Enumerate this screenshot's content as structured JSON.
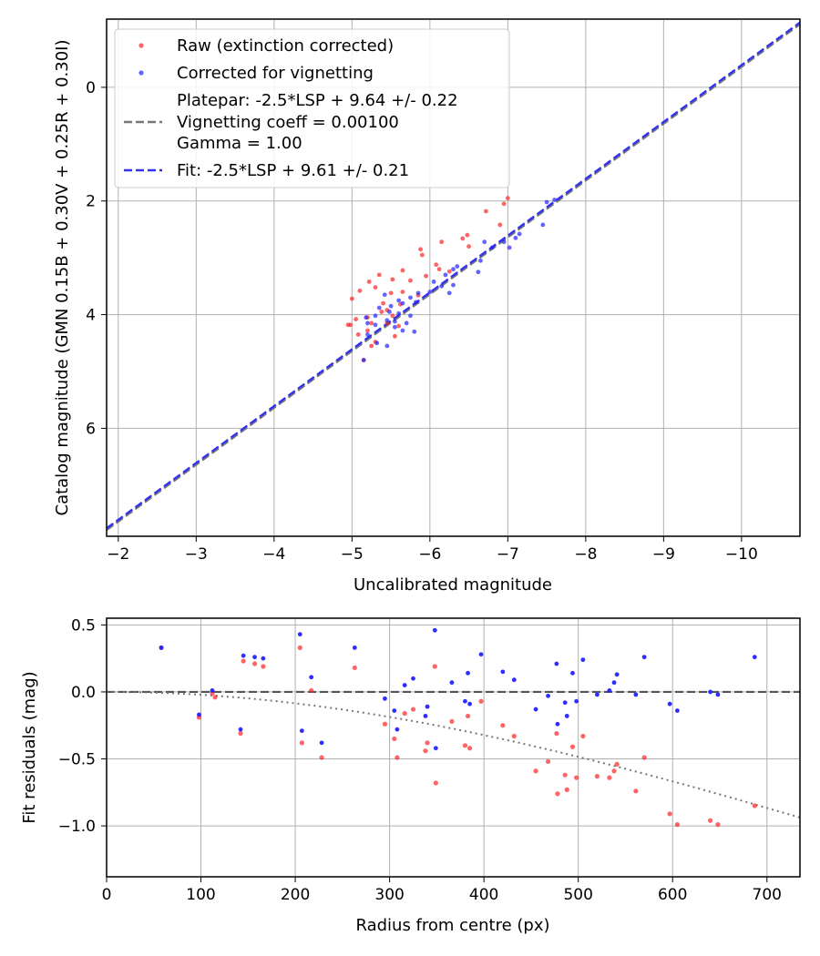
{
  "colors": {
    "raw": "#ff2222",
    "corrected": "#2222ff",
    "platepar": "#777777",
    "fit": "#3333ee",
    "zero_line": "#555555",
    "model_curve": "#777777"
  },
  "chart_data": [
    {
      "type": "scatter",
      "title": "",
      "xlabel": "Uncalibrated magnitude",
      "ylabel": "Catalog magnitude (GMN 0.15B + 0.30V + 0.25R + 0.30I)",
      "xlim": [
        -1.85,
        -10.75
      ],
      "ylim": [
        7.9,
        -1.2
      ],
      "xticks": [
        -2,
        -3,
        -4,
        -5,
        -6,
        -7,
        -8,
        -9,
        -10
      ],
      "xtick_labels": [
        "−2",
        "−3",
        "−4",
        "−5",
        "−6",
        "−7",
        "−8",
        "−9",
        "−10"
      ],
      "yticks": [
        0,
        2,
        4,
        6
      ],
      "ytick_labels": [
        "0",
        "2",
        "4",
        "6"
      ],
      "grid": true,
      "legend": {
        "placement": "top-left",
        "entries": [
          {
            "label": "Raw (extinction corrected)",
            "marker": "dot",
            "color_key": "raw"
          },
          {
            "label": "Corrected for vignetting",
            "marker": "dot",
            "color_key": "corrected"
          },
          {
            "label_lines": [
              "Platepar: -2.5*LSP + 9.64 +/- 0.22",
              "Vignetting coeff = 0.00100",
              "Gamma = 1.00"
            ],
            "marker": "dashed",
            "color_key": "platepar"
          },
          {
            "label": "Fit: -2.5*LSP + 9.61 +/- 0.21",
            "marker": "dashed",
            "color_key": "fit"
          }
        ]
      },
      "lines": [
        {
          "name": "Platepar",
          "slope": 1.0,
          "intercept": 9.64,
          "color_key": "platepar"
        },
        {
          "name": "Fit",
          "slope": 1.0,
          "intercept": 9.61,
          "color_key": "fit"
        }
      ],
      "series": [
        {
          "name": "Raw (extinction corrected)",
          "color_key": "raw",
          "points": [
            [
              -7.0,
              1.95
            ],
            [
              -6.95,
              2.05
            ],
            [
              -6.72,
              2.18
            ],
            [
              -6.9,
              2.42
            ],
            [
              -6.48,
              2.6
            ],
            [
              -6.42,
              2.66
            ],
            [
              -6.5,
              2.8
            ],
            [
              -6.15,
              2.72
            ],
            [
              -5.88,
              2.85
            ],
            [
              -5.9,
              2.95
            ],
            [
              -6.08,
              3.12
            ],
            [
              -6.12,
              3.2
            ],
            [
              -6.25,
              3.24
            ],
            [
              -5.65,
              3.22
            ],
            [
              -5.95,
              3.32
            ],
            [
              -5.75,
              3.4
            ],
            [
              -5.52,
              3.38
            ],
            [
              -5.35,
              3.3
            ],
            [
              -5.22,
              3.42
            ],
            [
              -5.3,
              3.52
            ],
            [
              -5.1,
              3.58
            ],
            [
              -5.65,
              3.6
            ],
            [
              -5.5,
              3.62
            ],
            [
              -5.85,
              3.66
            ],
            [
              -5.0,
              3.72
            ],
            [
              -5.4,
              3.8
            ],
            [
              -5.62,
              3.82
            ],
            [
              -5.45,
              3.92
            ],
            [
              -5.38,
              3.95
            ],
            [
              -5.52,
              4.02
            ],
            [
              -5.2,
              4.05
            ],
            [
              -5.05,
              4.08
            ],
            [
              -5.25,
              4.15
            ],
            [
              -5.45,
              4.15
            ],
            [
              -4.98,
              4.18
            ],
            [
              -4.95,
              4.18
            ],
            [
              -5.6,
              4.2
            ],
            [
              -5.2,
              4.28
            ],
            [
              -5.08,
              4.35
            ],
            [
              -5.55,
              4.38
            ],
            [
              -5.3,
              4.48
            ],
            [
              -5.25,
              4.55
            ],
            [
              -5.15,
              4.8
            ]
          ]
        },
        {
          "name": "Corrected for vignetting",
          "color_key": "corrected",
          "points": [
            [
              -7.6,
              1.98
            ],
            [
              -7.5,
              2.02
            ],
            [
              -7.45,
              2.42
            ],
            [
              -7.15,
              2.58
            ],
            [
              -7.1,
              2.65
            ],
            [
              -6.95,
              2.72
            ],
            [
              -6.7,
              2.72
            ],
            [
              -7.02,
              2.82
            ],
            [
              -6.8,
              2.82
            ],
            [
              -6.65,
              3.05
            ],
            [
              -6.62,
              3.25
            ],
            [
              -6.35,
              3.15
            ],
            [
              -6.3,
              3.2
            ],
            [
              -6.2,
              3.3
            ],
            [
              -6.3,
              3.48
            ],
            [
              -6.05,
              3.42
            ],
            [
              -6.15,
              3.5
            ],
            [
              -6.25,
              3.62
            ],
            [
              -6.0,
              3.6
            ],
            [
              -5.85,
              3.62
            ],
            [
              -5.75,
              3.7
            ],
            [
              -5.82,
              3.78
            ],
            [
              -5.65,
              3.8
            ],
            [
              -5.6,
              3.75
            ],
            [
              -5.42,
              3.65
            ],
            [
              -5.5,
              3.85
            ],
            [
              -5.35,
              3.88
            ],
            [
              -5.48,
              3.95
            ],
            [
              -5.6,
              3.98
            ],
            [
              -5.3,
              4.02
            ],
            [
              -5.75,
              4.02
            ],
            [
              -5.7,
              4.15
            ],
            [
              -5.55,
              4.12
            ],
            [
              -5.45,
              4.1
            ],
            [
              -5.2,
              4.15
            ],
            [
              -5.18,
              4.05
            ],
            [
              -5.3,
              4.18
            ],
            [
              -5.55,
              4.22
            ],
            [
              -5.65,
              4.28
            ],
            [
              -5.8,
              4.3
            ],
            [
              -5.2,
              4.35
            ],
            [
              -5.32,
              4.5
            ],
            [
              -5.45,
              4.55
            ],
            [
              -5.15,
              4.8
            ]
          ]
        }
      ]
    },
    {
      "type": "scatter",
      "title": "",
      "xlabel": "Radius from centre (px)",
      "ylabel": "Fit residuals (mag)",
      "xlim": [
        0,
        735
      ],
      "ylim": [
        -1.38,
        0.55
      ],
      "xticks": [
        0,
        100,
        200,
        300,
        400,
        500,
        600,
        700
      ],
      "xtick_labels": [
        "0",
        "100",
        "200",
        "300",
        "400",
        "500",
        "600",
        "700"
      ],
      "yticks": [
        0.5,
        0.0,
        -0.5,
        -1.0
      ],
      "ytick_labels": [
        "0.5",
        "0.0",
        "−0.5",
        "−1.0"
      ],
      "grid": true,
      "lines": [
        {
          "name": "Zero residual",
          "y": 0.0,
          "style": "dashed",
          "color_key": "zero_line"
        },
        {
          "name": "Vignetting model",
          "coeff": 0.001,
          "style": "dotted",
          "color_key": "model_curve"
        }
      ],
      "series": [
        {
          "name": "Raw (extinction corrected)",
          "color_key": "raw",
          "points": [
            [
              58,
              0.33
            ],
            [
              98,
              -0.19
            ],
            [
              112,
              -0.01
            ],
            [
              115,
              -0.04
            ],
            [
              142,
              -0.31
            ],
            [
              145,
              0.23
            ],
            [
              157,
              0.21
            ],
            [
              166,
              0.19
            ],
            [
              205,
              0.33
            ],
            [
              207,
              -0.38
            ],
            [
              217,
              0.01
            ],
            [
              228,
              -0.49
            ],
            [
              263,
              0.18
            ],
            [
              295,
              -0.24
            ],
            [
              305,
              -0.35
            ],
            [
              308,
              -0.49
            ],
            [
              316,
              -0.16
            ],
            [
              325,
              -0.13
            ],
            [
              338,
              -0.44
            ],
            [
              340,
              -0.38
            ],
            [
              348,
              0.19
            ],
            [
              349,
              -0.68
            ],
            [
              366,
              -0.22
            ],
            [
              380,
              -0.4
            ],
            [
              383,
              -0.18
            ],
            [
              385,
              -0.42
            ],
            [
              397,
              -0.07
            ],
            [
              420,
              -0.25
            ],
            [
              432,
              -0.33
            ],
            [
              455,
              -0.59
            ],
            [
              468,
              -0.52
            ],
            [
              477,
              -0.31
            ],
            [
              478,
              -0.76
            ],
            [
              486,
              -0.62
            ],
            [
              488,
              -0.73
            ],
            [
              494,
              -0.41
            ],
            [
              498,
              -0.64
            ],
            [
              505,
              -0.33
            ],
            [
              520,
              -0.63
            ],
            [
              533,
              -0.64
            ],
            [
              538,
              -0.59
            ],
            [
              541,
              -0.54
            ],
            [
              561,
              -0.74
            ],
            [
              570,
              -0.49
            ],
            [
              597,
              -0.91
            ],
            [
              605,
              -0.99
            ],
            [
              640,
              -0.96
            ],
            [
              648,
              -0.99
            ],
            [
              687,
              -0.85
            ]
          ]
        },
        {
          "name": "Corrected for vignetting",
          "color_key": "corrected",
          "points": [
            [
              58,
              0.33
            ],
            [
              98,
              -0.17
            ],
            [
              112,
              0.01
            ],
            [
              142,
              -0.28
            ],
            [
              145,
              0.27
            ],
            [
              157,
              0.26
            ],
            [
              166,
              0.25
            ],
            [
              205,
              0.43
            ],
            [
              207,
              -0.29
            ],
            [
              217,
              0.11
            ],
            [
              228,
              -0.38
            ],
            [
              263,
              0.33
            ],
            [
              295,
              -0.05
            ],
            [
              305,
              -0.14
            ],
            [
              308,
              -0.28
            ],
            [
              316,
              0.05
            ],
            [
              325,
              0.1
            ],
            [
              338,
              -0.18
            ],
            [
              340,
              -0.11
            ],
            [
              348,
              0.46
            ],
            [
              349,
              -0.42
            ],
            [
              366,
              0.07
            ],
            [
              380,
              -0.07
            ],
            [
              383,
              0.14
            ],
            [
              385,
              -0.09
            ],
            [
              397,
              0.28
            ],
            [
              420,
              0.15
            ],
            [
              432,
              0.09
            ],
            [
              455,
              -0.13
            ],
            [
              468,
              -0.03
            ],
            [
              477,
              0.21
            ],
            [
              478,
              -0.24
            ],
            [
              486,
              -0.08
            ],
            [
              488,
              -0.18
            ],
            [
              494,
              0.14
            ],
            [
              498,
              -0.07
            ],
            [
              505,
              0.24
            ],
            [
              520,
              -0.02
            ],
            [
              533,
              0.01
            ],
            [
              538,
              0.07
            ],
            [
              541,
              0.13
            ],
            [
              561,
              -0.02
            ],
            [
              570,
              0.26
            ],
            [
              597,
              -0.09
            ],
            [
              605,
              -0.14
            ],
            [
              640,
              0.0
            ],
            [
              648,
              -0.02
            ],
            [
              687,
              0.26
            ]
          ]
        }
      ]
    }
  ]
}
